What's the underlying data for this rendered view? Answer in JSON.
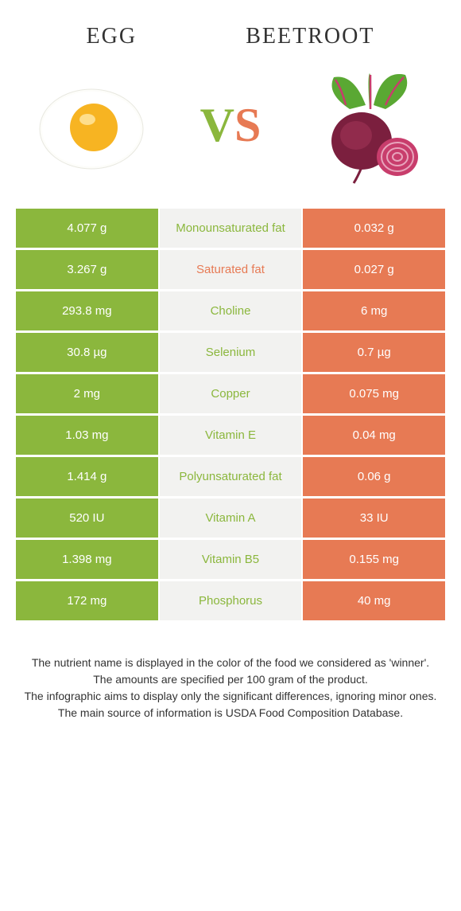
{
  "header": {
    "left_title": "Egg",
    "right_title": "Beetroot",
    "vs_v": "V",
    "vs_s": "S"
  },
  "colors": {
    "left": "#8bb73d",
    "right": "#e77a54",
    "mid_bg": "#f2f2f0",
    "text": "#333333",
    "egg_white": "#fdfdfa",
    "egg_yolk": "#f7b422",
    "egg_yolk_shine": "#ffe9a8",
    "beet_body": "#7b1f3e",
    "beet_body_hl": "#a03356",
    "beet_slice": "#c83d6c",
    "beet_slice_ring": "#e8a4bc",
    "beet_leaf": "#5aa833",
    "beet_stem": "#c83d6c"
  },
  "table": {
    "rows": [
      {
        "left": "4.077 g",
        "label": "Monounsaturated fat",
        "right": "0.032 g",
        "winner": "left"
      },
      {
        "left": "3.267 g",
        "label": "Saturated fat",
        "right": "0.027 g",
        "winner": "right"
      },
      {
        "left": "293.8 mg",
        "label": "Choline",
        "right": "6 mg",
        "winner": "left"
      },
      {
        "left": "30.8 µg",
        "label": "Selenium",
        "right": "0.7 µg",
        "winner": "left"
      },
      {
        "left": "2 mg",
        "label": "Copper",
        "right": "0.075 mg",
        "winner": "left"
      },
      {
        "left": "1.03 mg",
        "label": "Vitamin E",
        "right": "0.04 mg",
        "winner": "left"
      },
      {
        "left": "1.414 g",
        "label": "Polyunsaturated fat",
        "right": "0.06 g",
        "winner": "left"
      },
      {
        "left": "520 IU",
        "label": "Vitamin A",
        "right": "33 IU",
        "winner": "left"
      },
      {
        "left": "1.398 mg",
        "label": "Vitamin B5",
        "right": "0.155 mg",
        "winner": "left"
      },
      {
        "left": "172 mg",
        "label": "Phosphorus",
        "right": "40 mg",
        "winner": "left"
      }
    ]
  },
  "footer": {
    "line1": "The nutrient name is displayed in the color of the food we considered as 'winner'.",
    "line2": "The amounts are specified per 100 gram of the product.",
    "line3": "The infographic aims to display only the significant differences, ignoring minor ones.",
    "line4": "The main source of information is USDA Food Composition Database."
  }
}
